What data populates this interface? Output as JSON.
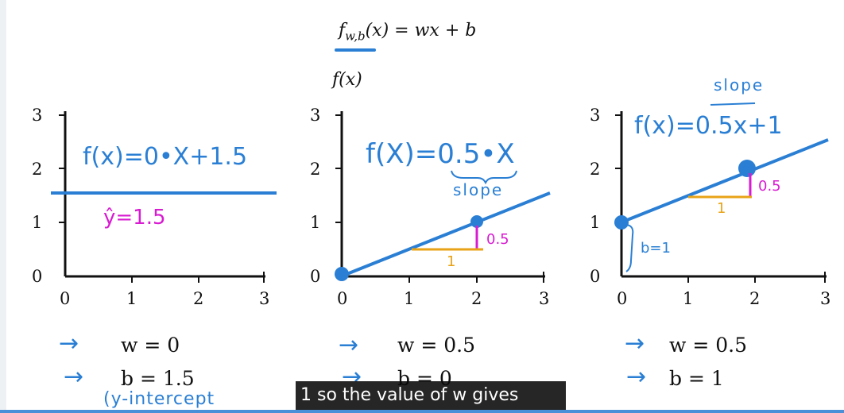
{
  "header": {
    "formula_lhs": "f",
    "formula_sub": "w,b",
    "formula_rhs": "(x) = wx + b",
    "y_label": "f(x)"
  },
  "panels": [
    {
      "y_ticks": [
        "3",
        "2",
        "1",
        "0"
      ],
      "x_ticks": [
        "0",
        "1",
        "2",
        "3"
      ],
      "equation": "f(x)=0•X+1.5",
      "prediction": "ŷ=1.5",
      "w_label": "w = 0",
      "b_label": "b = 1.5",
      "annotation": "(y-intercept"
    },
    {
      "y_ticks": [
        "3",
        "2",
        "1",
        "0"
      ],
      "x_ticks": [
        "0",
        "1",
        "2",
        "3"
      ],
      "equation": "f(X)=0.5•X",
      "slope_note": "slope",
      "rise": "0.5",
      "run": "1",
      "w_label": "w = 0.5",
      "b_label": "b = 0"
    },
    {
      "y_ticks": [
        "3",
        "2",
        "1",
        "0"
      ],
      "x_ticks": [
        "0",
        "1",
        "2",
        "3"
      ],
      "equation": "f(x)=0.5x+1",
      "slope_note": "slope",
      "rise": "0.5",
      "run": "1",
      "intercept_note": "b=1",
      "w_label": "w = 0.5",
      "b_label": "b = 1"
    }
  ],
  "caption": "1 so the value of w gives",
  "colors": {
    "line": "#2a7fd4",
    "rise": "#d81bd1",
    "run": "#e8a317"
  },
  "chart_data": [
    {
      "type": "line",
      "x": [
        0,
        3
      ],
      "y": [
        1.5,
        1.5
      ],
      "xlim": [
        0,
        3
      ],
      "ylim": [
        0,
        3
      ]
    },
    {
      "type": "line",
      "x": [
        0,
        3
      ],
      "y": [
        0,
        1.5
      ],
      "points": [
        [
          0,
          0
        ],
        [
          2,
          1
        ]
      ],
      "xlim": [
        0,
        3
      ],
      "ylim": [
        0,
        3
      ]
    },
    {
      "type": "line",
      "x": [
        0,
        3
      ],
      "y": [
        1,
        2.5
      ],
      "points": [
        [
          0,
          1
        ],
        [
          2,
          2
        ]
      ],
      "xlim": [
        0,
        3
      ],
      "ylim": [
        0,
        3
      ]
    }
  ]
}
